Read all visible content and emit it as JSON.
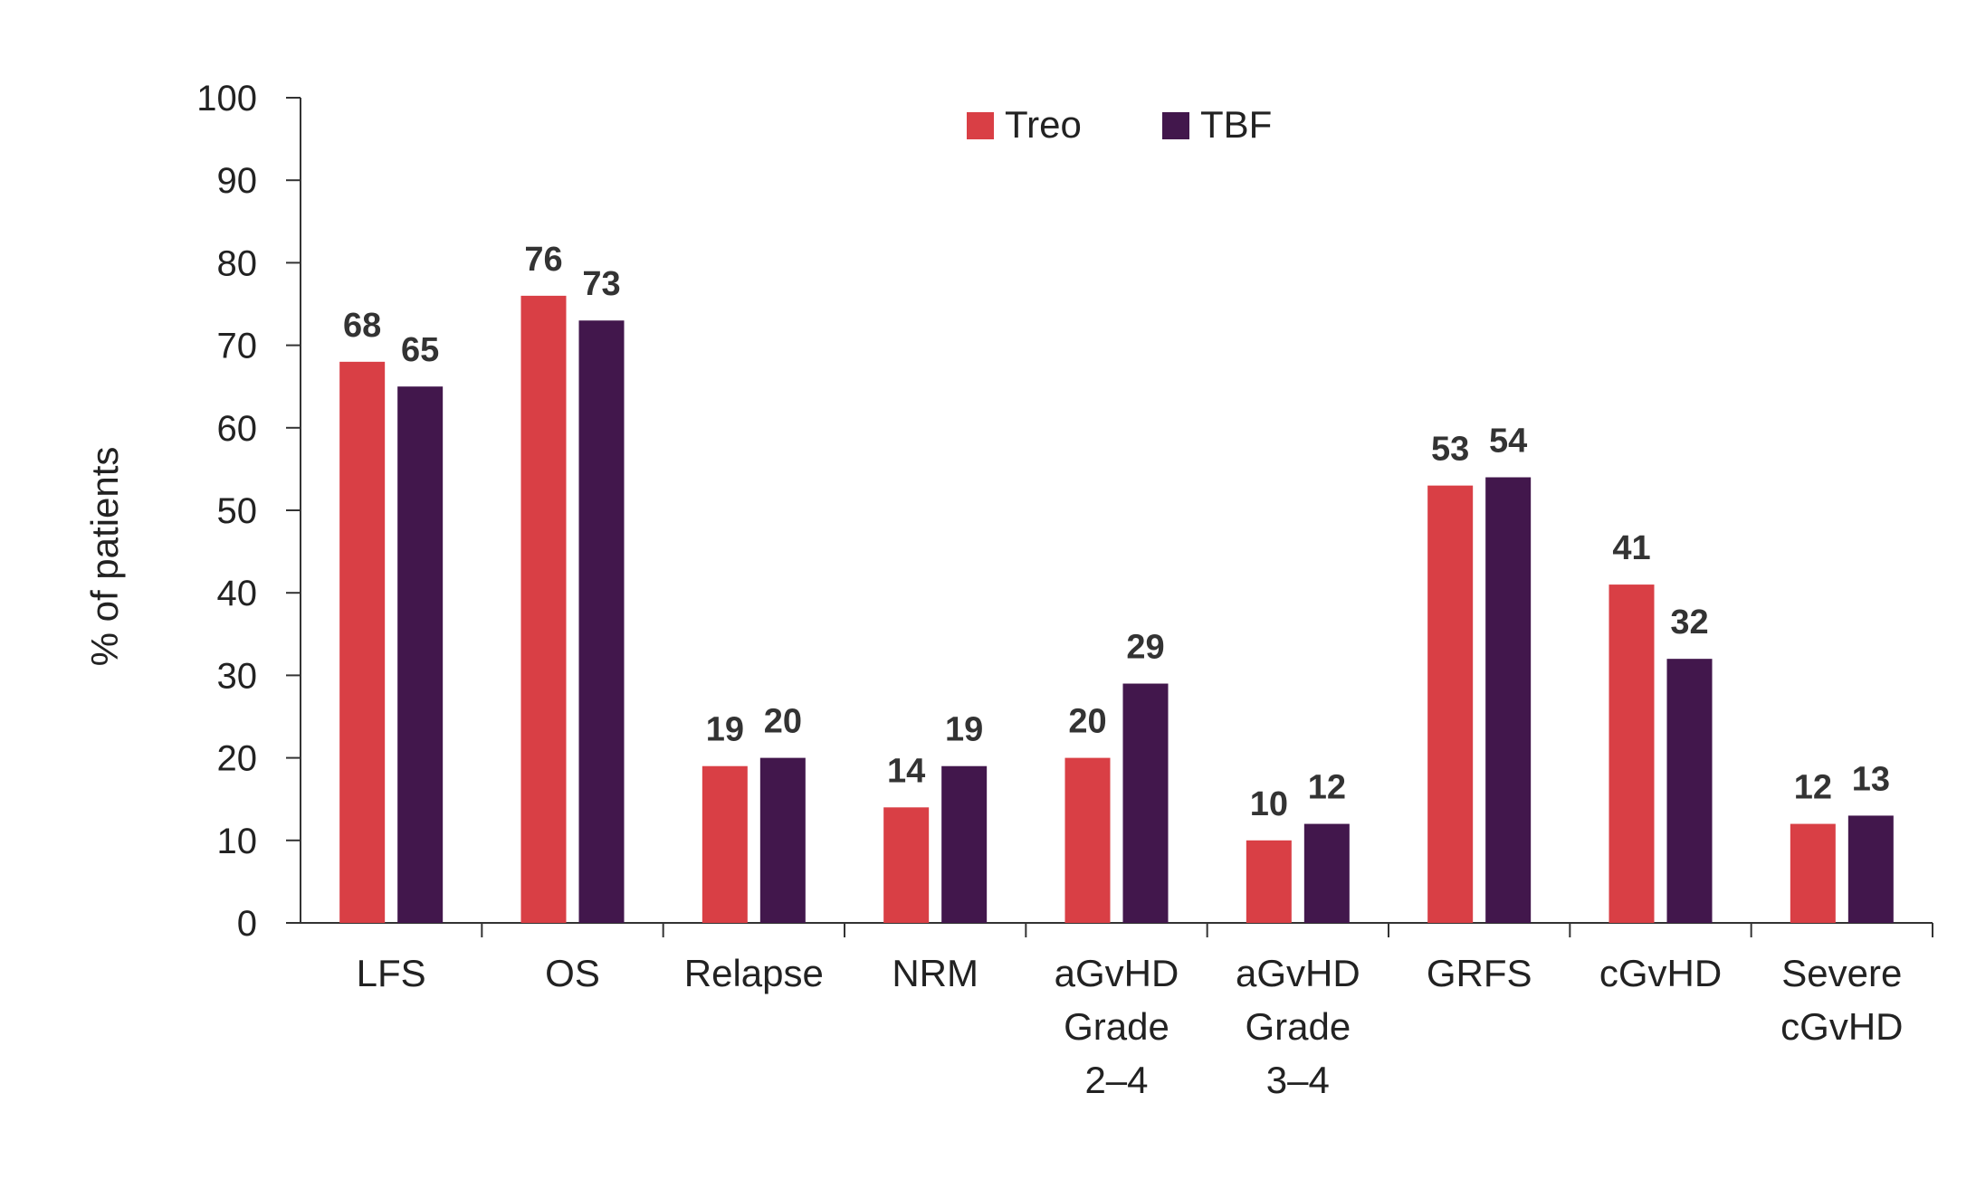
{
  "chart_data": {
    "type": "bar",
    "categories": [
      [
        "LFS"
      ],
      [
        "OS"
      ],
      [
        "Relapse"
      ],
      [
        "NRM"
      ],
      [
        "aGvHD",
        "Grade",
        "2–4"
      ],
      [
        "aGvHD",
        "Grade",
        "3–4"
      ],
      [
        "GRFS"
      ],
      [
        "cGvHD"
      ],
      [
        "Severe",
        "cGvHD"
      ]
    ],
    "series": [
      {
        "name": "Treo",
        "color": "#d93f45",
        "values": [
          68,
          76,
          19,
          14,
          20,
          10,
          53,
          41,
          12
        ]
      },
      {
        "name": "TBF",
        "color": "#42174c",
        "values": [
          65,
          73,
          20,
          19,
          29,
          12,
          54,
          32,
          13
        ]
      }
    ],
    "ylabel": "% of patients",
    "xlabel": "",
    "title": "",
    "ylim": [
      0,
      100
    ],
    "yticks": [
      0,
      10,
      20,
      30,
      40,
      50,
      60,
      70,
      80,
      90,
      100
    ],
    "grid": false,
    "legend_position": "top-center",
    "data_labels": true
  }
}
